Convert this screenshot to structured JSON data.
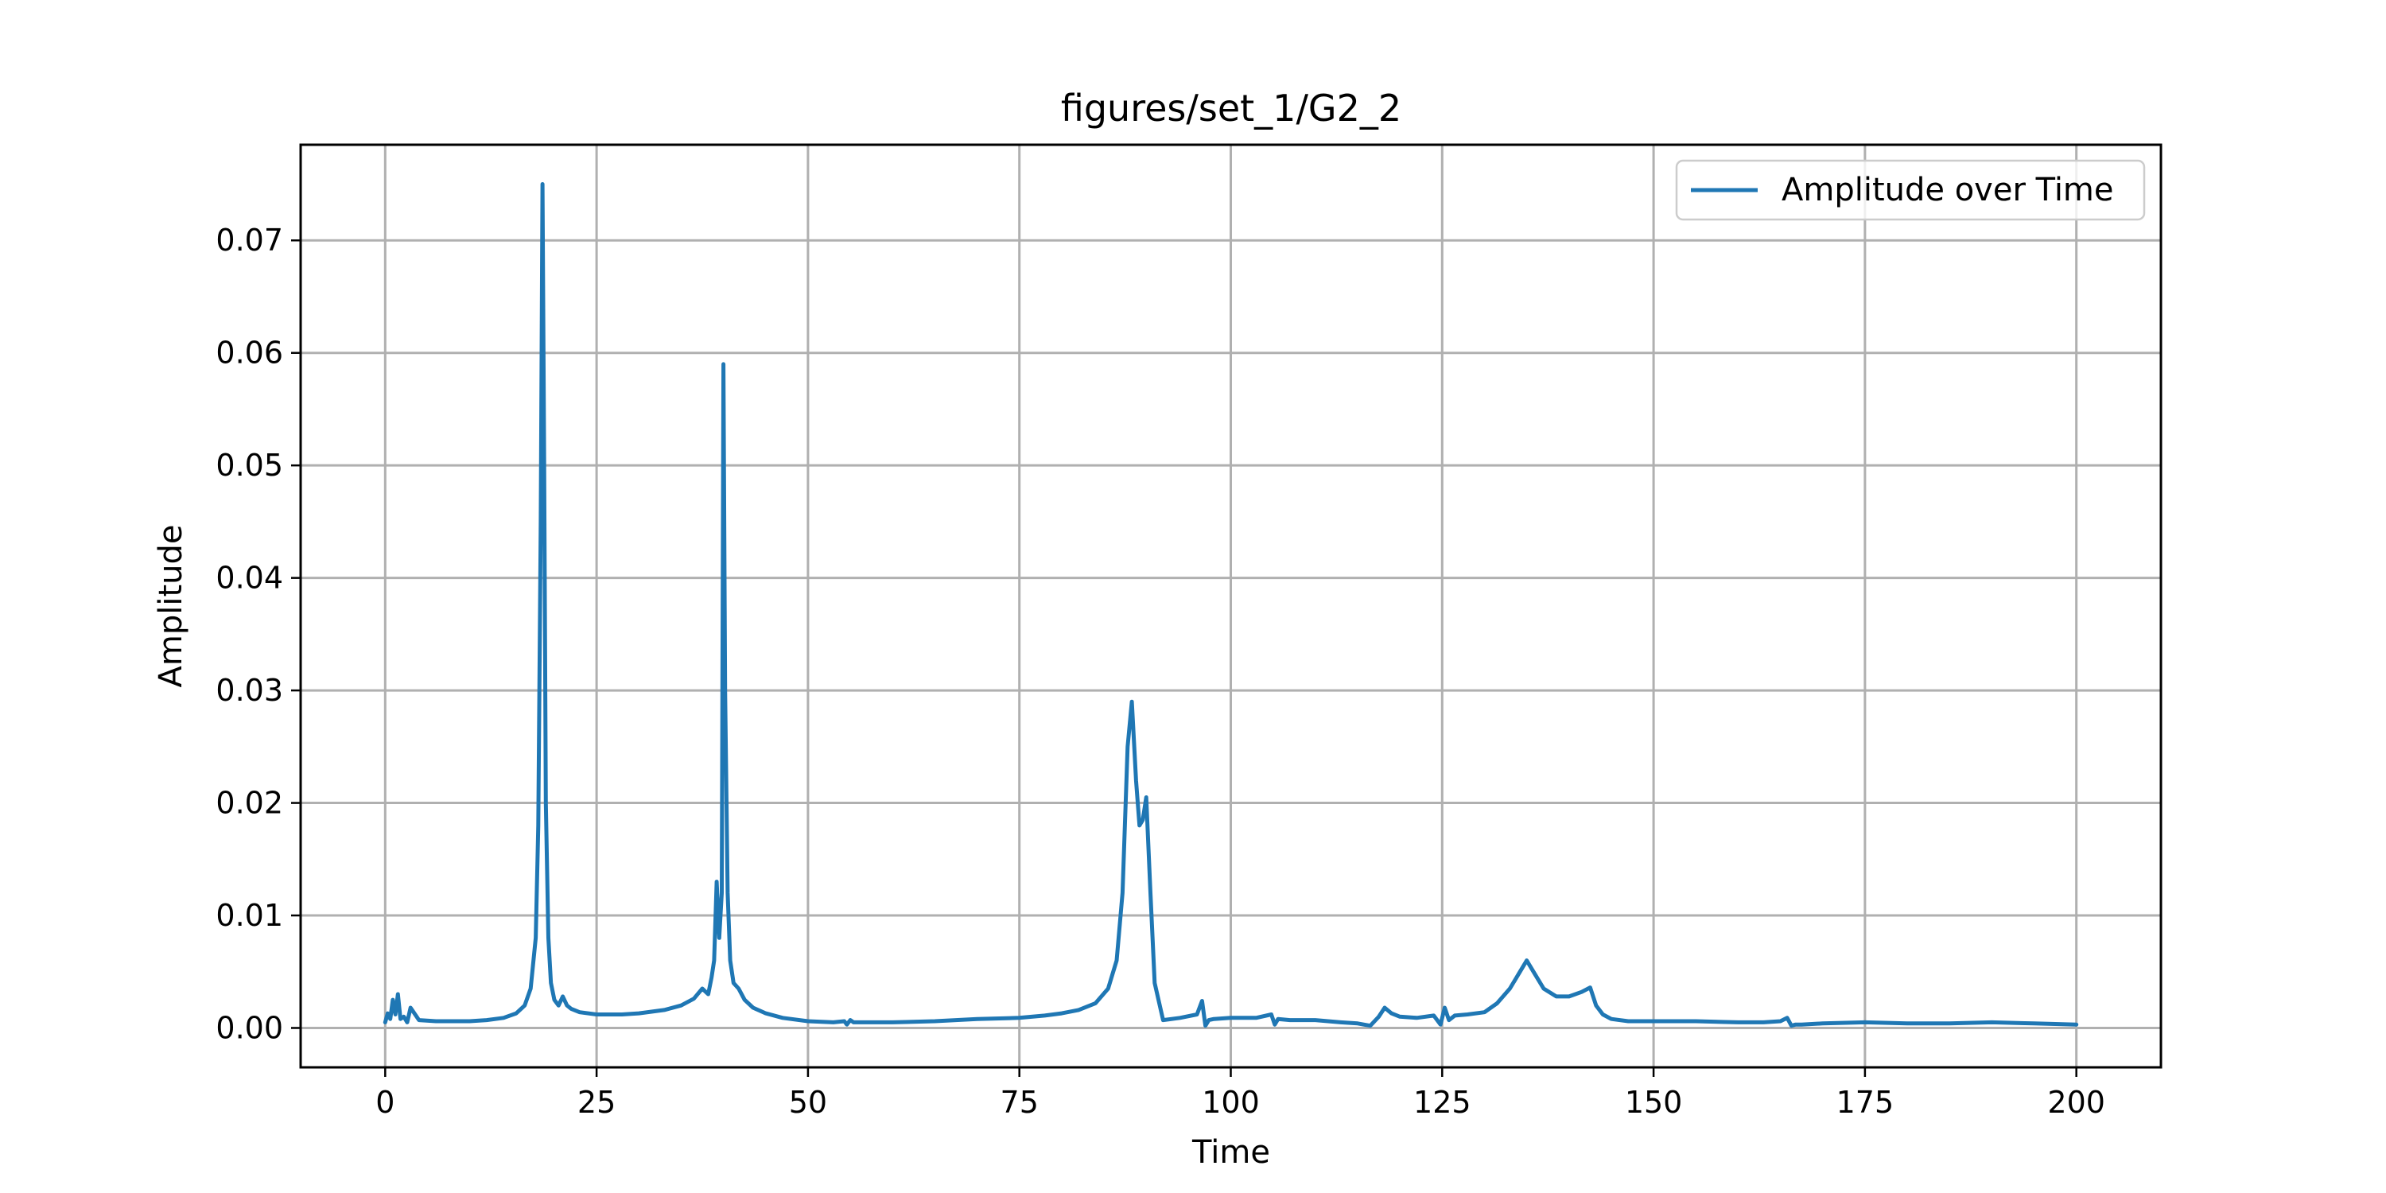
{
  "chart_data": {
    "type": "line",
    "title": "figures/set_1/G2_2",
    "xlabel": "Time",
    "ylabel": "Amplitude",
    "xlim": [
      -10,
      210
    ],
    "ylim": [
      -0.0035,
      0.0785
    ],
    "xticks": [
      0,
      25,
      50,
      75,
      100,
      125,
      150,
      175,
      200
    ],
    "xtick_labels": [
      "0",
      "25",
      "50",
      "75",
      "100",
      "125",
      "150",
      "175",
      "200"
    ],
    "yticks": [
      0.0,
      0.01,
      0.02,
      0.03,
      0.04,
      0.05,
      0.06,
      0.07
    ],
    "ytick_labels": [
      "0.00",
      "0.01",
      "0.02",
      "0.03",
      "0.04",
      "0.05",
      "0.06",
      "0.07"
    ],
    "grid": true,
    "legend_position": "top-right",
    "line_color": "#1f77b4",
    "series": [
      {
        "name": "Amplitude over Time",
        "x": [
          0,
          0.3,
          0.6,
          0.9,
          1.2,
          1.5,
          1.8,
          2.2,
          2.6,
          3.0,
          4,
          6,
          8,
          10,
          12,
          14,
          15.5,
          16.5,
          17.2,
          17.8,
          18.1,
          18.4,
          18.6,
          18.8,
          19.0,
          19.3,
          19.6,
          20.0,
          20.5,
          21.0,
          21.5,
          22,
          23,
          25,
          28,
          30,
          33,
          35,
          36.5,
          37.5,
          38.2,
          38.6,
          38.9,
          39.2,
          39.5,
          39.8,
          40.0,
          40.2,
          40.5,
          40.8,
          41.2,
          41.8,
          42.5,
          43.5,
          45,
          47,
          50,
          53,
          54.3,
          54.6,
          55.0,
          55.4,
          56,
          60,
          65,
          70,
          75,
          78,
          80,
          82,
          84,
          85.5,
          86.5,
          87.2,
          87.8,
          88.3,
          88.8,
          89.2,
          89.6,
          90.0,
          90.5,
          91.0,
          92,
          94,
          96,
          96.6,
          97.0,
          97.4,
          98,
          100,
          103,
          104.8,
          105.2,
          105.6,
          107,
          110,
          113,
          115,
          116.5,
          117.5,
          118.2,
          119,
          120,
          122,
          124,
          124.8,
          125.3,
          125.8,
          126.5,
          128,
          130,
          131.5,
          133,
          134.2,
          135.0,
          135.8,
          137,
          138.5,
          140,
          141.5,
          142.5,
          143.2,
          144,
          145,
          147,
          150,
          155,
          160,
          163,
          165,
          165.8,
          166.3,
          166.8,
          167.5,
          170,
          175,
          180,
          185,
          190,
          195,
          200
        ],
        "values": [
          0.0005,
          0.0013,
          0.0008,
          0.0025,
          0.0012,
          0.003,
          0.0008,
          0.001,
          0.0005,
          0.0018,
          0.0007,
          0.0006,
          0.0006,
          0.0006,
          0.0007,
          0.0009,
          0.0013,
          0.002,
          0.0035,
          0.008,
          0.018,
          0.045,
          0.075,
          0.05,
          0.02,
          0.008,
          0.004,
          0.0025,
          0.002,
          0.0028,
          0.002,
          0.0017,
          0.0014,
          0.0012,
          0.0012,
          0.0013,
          0.0016,
          0.002,
          0.0026,
          0.0035,
          0.003,
          0.0045,
          0.006,
          0.013,
          0.008,
          0.012,
          0.059,
          0.03,
          0.012,
          0.006,
          0.004,
          0.0035,
          0.0025,
          0.0018,
          0.0013,
          0.0009,
          0.0006,
          0.0005,
          0.0006,
          0.0003,
          0.0007,
          0.0005,
          0.0005,
          0.0005,
          0.0006,
          0.0008,
          0.0009,
          0.0011,
          0.0013,
          0.0016,
          0.0022,
          0.0035,
          0.006,
          0.012,
          0.025,
          0.029,
          0.022,
          0.018,
          0.0185,
          0.0205,
          0.012,
          0.004,
          0.0007,
          0.0009,
          0.0012,
          0.0024,
          0.0002,
          0.0007,
          0.0008,
          0.0009,
          0.0009,
          0.0012,
          0.0003,
          0.0008,
          0.0007,
          0.0007,
          0.0005,
          0.0004,
          0.0002,
          0.001,
          0.0018,
          0.0013,
          0.001,
          0.0009,
          0.0011,
          0.0003,
          0.0018,
          0.0007,
          0.0011,
          0.0012,
          0.0014,
          0.0022,
          0.0035,
          0.005,
          0.006,
          0.005,
          0.0035,
          0.0028,
          0.0028,
          0.0032,
          0.0036,
          0.002,
          0.0012,
          0.0008,
          0.0006,
          0.0006,
          0.0006,
          0.0005,
          0.0005,
          0.0006,
          0.0009,
          0.0002,
          0.0003,
          0.0003,
          0.0004,
          0.0005,
          0.0004,
          0.0004,
          0.0005,
          0.0004,
          0.0003
        ]
      }
    ]
  }
}
